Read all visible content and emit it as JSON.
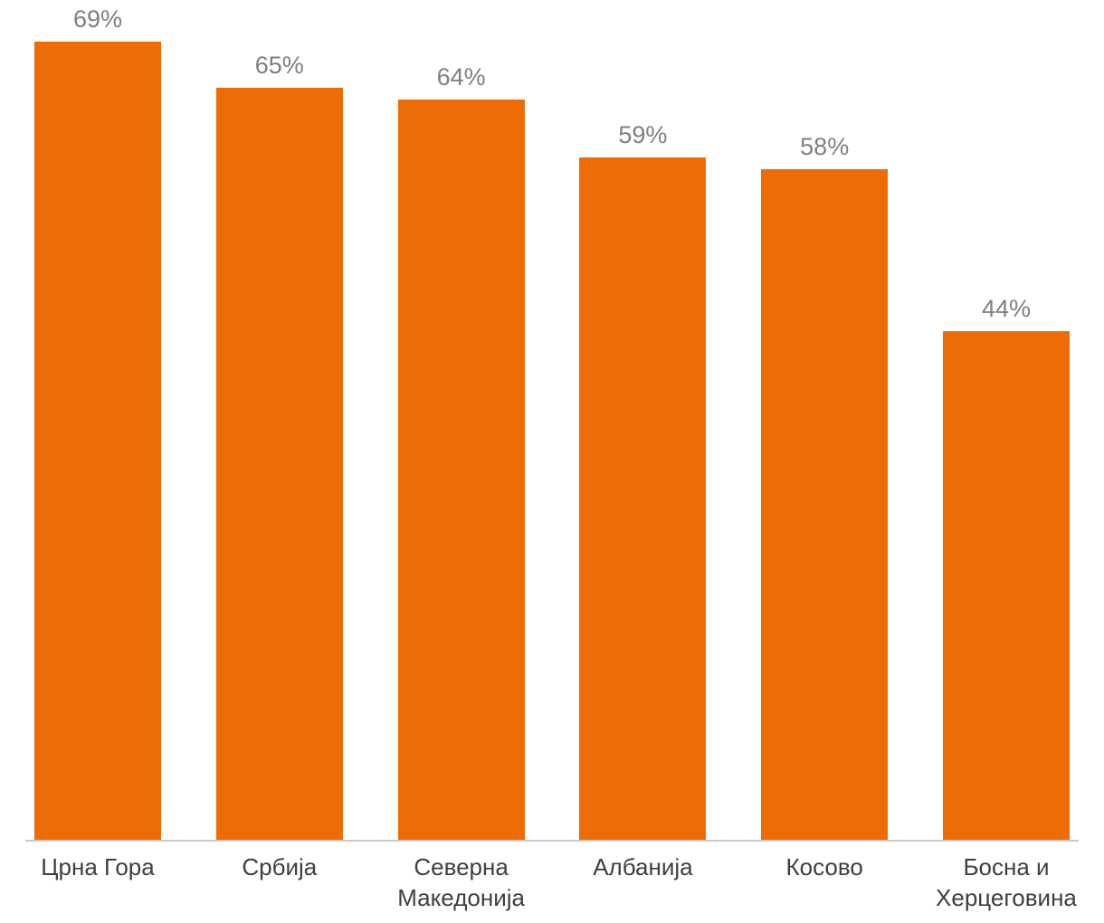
{
  "chart_data": {
    "type": "bar",
    "categories": [
      "Црна Гора",
      "Србија",
      "Северна Македонија",
      "Албанија",
      "Косово",
      "Босна и Херцеговина"
    ],
    "values": [
      69,
      65,
      64,
      59,
      58,
      44
    ],
    "labels": [
      "69%",
      "65%",
      "64%",
      "59%",
      "58%",
      "44%"
    ],
    "value_suffix": "%",
    "title": "",
    "xlabel": "",
    "ylabel": "",
    "ylim": [
      0,
      73
    ],
    "grid": false,
    "legend": false,
    "bar_color": "#ED6C05",
    "value_label_color": "#7F7F7F",
    "category_label_color": "#3F3F3F",
    "axis_line_color": "#C8C8C8"
  }
}
